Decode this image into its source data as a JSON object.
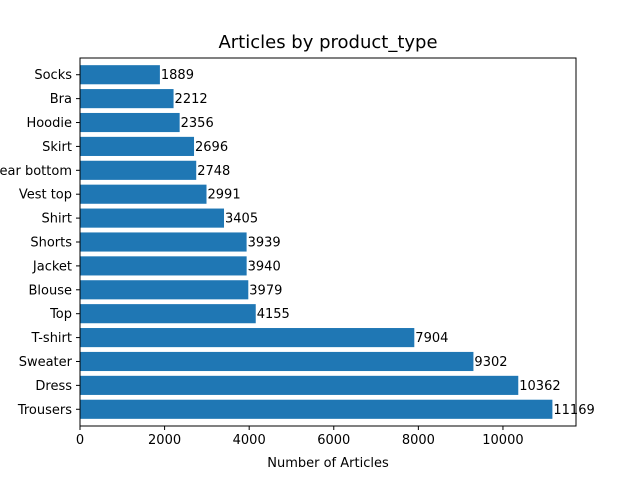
{
  "chart_data": {
    "type": "bar",
    "orientation": "horizontal",
    "title": "Articles by product_type",
    "xlabel": "Number of Articles",
    "ylabel": "",
    "categories": [
      "Socks",
      "Bra",
      "Hoodie",
      "Skirt",
      "Swimwear bottom",
      "Vest top",
      "Shirt",
      "Shorts",
      "Jacket",
      "Blouse",
      "Top",
      "T-shirt",
      "Sweater",
      "Dress",
      "Trousers"
    ],
    "values": [
      1889,
      2212,
      2356,
      2696,
      2748,
      2991,
      3405,
      3939,
      3940,
      3979,
      4155,
      7904,
      9302,
      10362,
      11169
    ],
    "xlim": [
      0,
      11727
    ],
    "xticks": [
      0,
      2000,
      4000,
      6000,
      8000,
      10000
    ],
    "grid": false,
    "colors": {
      "bar": "#1f77b4"
    }
  }
}
